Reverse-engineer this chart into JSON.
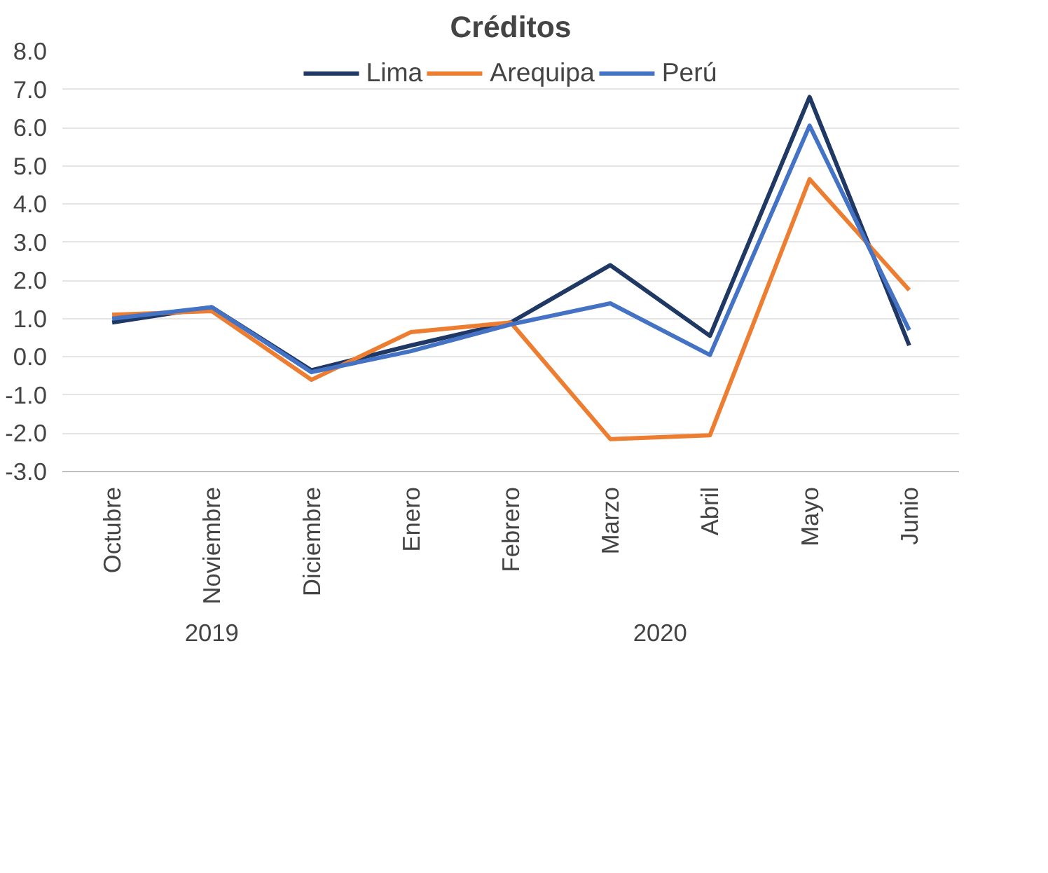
{
  "chart_data": {
    "type": "line",
    "title": "Créditos",
    "categories": [
      "Octubre",
      "Noviembre",
      "Diciembre",
      "Enero",
      "Febrero",
      "Marzo",
      "Abril",
      "Mayo",
      "Junio"
    ],
    "series": [
      {
        "name": "Lima",
        "color": "#203864",
        "values": [
          0.9,
          1.3,
          -0.35,
          0.3,
          0.9,
          2.4,
          0.55,
          6.8,
          0.3
        ]
      },
      {
        "name": "Arequipa",
        "color": "#ed7d31",
        "values": [
          1.1,
          1.2,
          -0.6,
          0.65,
          0.9,
          -2.15,
          -2.05,
          4.65,
          1.75
        ]
      },
      {
        "name": "Perú",
        "color": "#4472c4",
        "values": [
          1.0,
          1.3,
          -0.4,
          0.15,
          0.85,
          1.4,
          0.05,
          6.05,
          0.7
        ]
      }
    ],
    "ylim": [
      -3,
      8
    ],
    "yticks": [
      {
        "value": -3,
        "label": "-3.0"
      },
      {
        "value": -2,
        "label": "-2.0"
      },
      {
        "value": -1,
        "label": "-1.0"
      },
      {
        "value": 0,
        "label": "0.0"
      },
      {
        "value": 1,
        "label": "1.0"
      },
      {
        "value": 2,
        "label": "2.0"
      },
      {
        "value": 3,
        "label": "3.0"
      },
      {
        "value": 4,
        "label": "4.0"
      },
      {
        "value": 5,
        "label": "5.0"
      },
      {
        "value": 6,
        "label": "6.0"
      },
      {
        "value": 7,
        "label": "7.0"
      },
      {
        "value": 8,
        "label": "8.0"
      }
    ],
    "annotations": [
      "2019",
      "2020"
    ],
    "grid": "y",
    "legend": "top",
    "marker": "none",
    "line_style": "solid"
  }
}
